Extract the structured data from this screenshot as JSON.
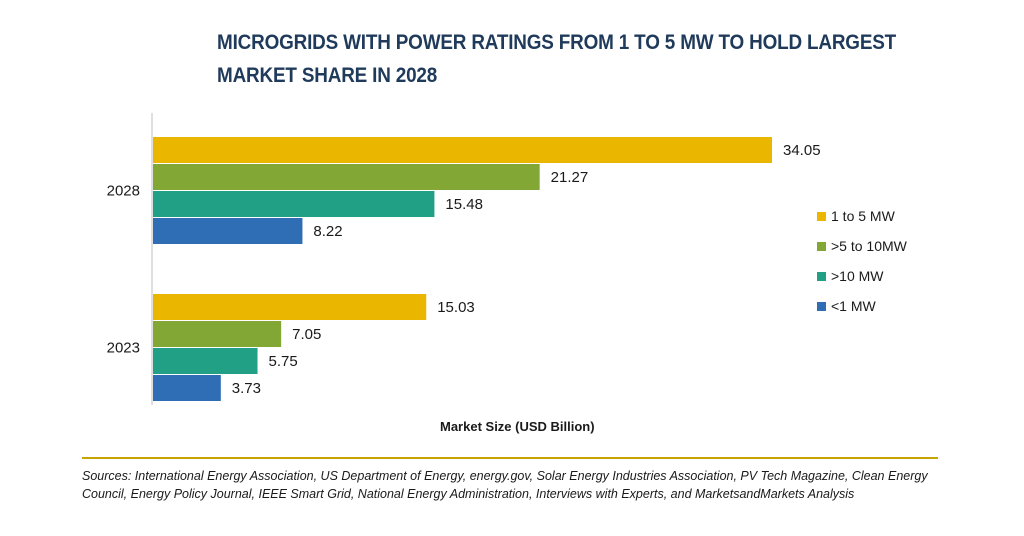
{
  "title_lines": [
    "MICROGRIDS WITH POWER RATINGS FROM 1 TO 5 MW TO HOLD LARGEST",
    "MARKET SHARE IN 2028"
  ],
  "sources": "Sources: International Energy Association, US Department of Energy, energy.gov, Solar Energy Industries Association, PV Tech Magazine, Clean Energy Council, Energy Policy Journal, IEEE Smart Grid, National Energy Administration, Interviews with Experts, and MarketsandMarkets Analysis",
  "chart_data": {
    "type": "bar",
    "orientation": "horizontal",
    "title": "MICROGRIDS WITH POWER RATINGS FROM 1 TO 5 MW TO HOLD LARGEST MARKET SHARE IN 2028",
    "xlabel": "Market Size (USD Billion)",
    "ylabel": "",
    "categories": [
      "2028",
      "2023"
    ],
    "series": [
      {
        "name": "1 to 5 MW",
        "color": "#eab600",
        "values": [
          34.05,
          15.03
        ]
      },
      {
        "name": ">5 to 10MW",
        "color": "#82a735",
        "values": [
          21.27,
          7.05
        ]
      },
      {
        "name": ">10 MW",
        "color": "#21a085",
        "values": [
          15.48,
          5.75
        ]
      },
      {
        "name": "<1 MW",
        "color": "#2f6db4",
        "values": [
          8.22,
          3.73
        ]
      }
    ],
    "xlim": [
      0,
      34.05
    ],
    "grid": false,
    "legend_position": "right",
    "data_labels": true
  }
}
